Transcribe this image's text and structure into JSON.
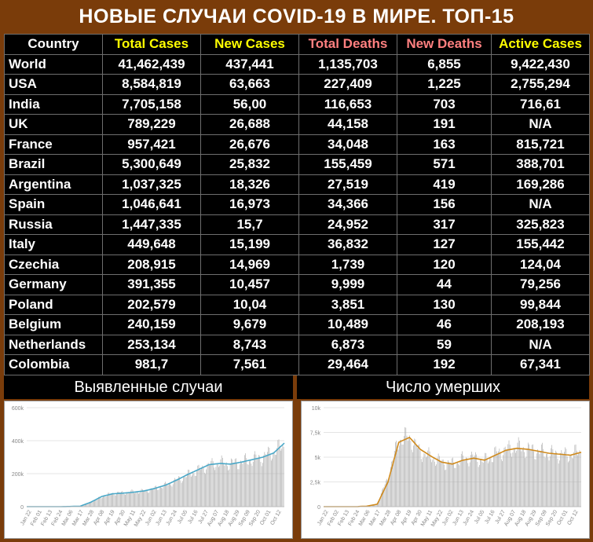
{
  "title": "НОВЫЕ СЛУЧАИ COVID-19 В МИРЕ. ТОП-15",
  "colors": {
    "background": "#7a3c0a",
    "header_yellow": "#ffff00",
    "header_red": "#ff8080",
    "header_white": "#ffffff",
    "cases_line": "#4aa8c8",
    "deaths_line": "#d08a1c",
    "bars": "#b0b0b0"
  },
  "table": {
    "headers": [
      "Country",
      "Total Cases",
      "New Cases",
      "Total Deaths",
      "New Deaths",
      "Active Cases"
    ],
    "rows": [
      [
        "World",
        "41,462,439",
        "437,441",
        "1,135,703",
        "6,855",
        "9,422,430"
      ],
      [
        "USA",
        "8,584,819",
        "63,663",
        "227,409",
        "1,225",
        "2,755,294"
      ],
      [
        "India",
        "7,705,158",
        "56,00",
        "116,653",
        "703",
        "716,61"
      ],
      [
        "UK",
        "789,229",
        "26,688",
        "44,158",
        "191",
        "N/A"
      ],
      [
        "France",
        "957,421",
        "26,676",
        "34,048",
        "163",
        "815,721"
      ],
      [
        "Brazil",
        "5,300,649",
        "25,832",
        "155,459",
        "571",
        "388,701"
      ],
      [
        "Argentina",
        "1,037,325",
        "18,326",
        "27,519",
        "419",
        "169,286"
      ],
      [
        "Spain",
        "1,046,641",
        "16,973",
        "34,366",
        "156",
        "N/A"
      ],
      [
        "Russia",
        "1,447,335",
        "15,7",
        "24,952",
        "317",
        "325,823"
      ],
      [
        "Italy",
        "449,648",
        "15,199",
        "36,832",
        "127",
        "155,442"
      ],
      [
        "Czechia",
        "208,915",
        "14,969",
        "1,739",
        "120",
        "124,04"
      ],
      [
        "Germany",
        "391,355",
        "10,457",
        "9,999",
        "44",
        "79,256"
      ],
      [
        "Poland",
        "202,579",
        "10,04",
        "3,851",
        "130",
        "99,844"
      ],
      [
        "Belgium",
        "240,159",
        "9,679",
        "10,489",
        "46",
        "208,193"
      ],
      [
        "Netherlands",
        "253,134",
        "8,743",
        "6,873",
        "59",
        "N/A"
      ],
      [
        "Colombia",
        "981,7",
        "7,561",
        "29,464",
        "192",
        "67,341"
      ]
    ]
  },
  "chart_data": [
    {
      "type": "bar",
      "title": "Выявленные случаи",
      "x_tick_labels": [
        "Jan 22",
        "Feb 01",
        "Feb 13",
        "Feb 24",
        "Mar 06",
        "Mar 17",
        "Mar 28",
        "Apr 08",
        "Apr 19",
        "Apr 30",
        "May 11",
        "May 22",
        "Jun 02",
        "Jun 13",
        "Jun 24",
        "Jul 05",
        "Jul 16",
        "Jul 27",
        "Aug 07",
        "Aug 18",
        "Aug 29",
        "Sep 09",
        "Sep 20",
        "Oct 01",
        "Oct 12"
      ],
      "y_ticks": [
        "0",
        "200k",
        "400k",
        "600k"
      ],
      "ylim": [
        0,
        600000
      ],
      "series": [
        {
          "kind": "daily",
          "values": [
            0,
            0,
            0,
            0,
            1000,
            3000,
            30000,
            60000,
            80000,
            85000,
            90000,
            95000,
            110000,
            130000,
            160000,
            190000,
            220000,
            250000,
            265000,
            260000,
            270000,
            285000,
            300000,
            330000,
            370000
          ]
        },
        {
          "kind": "7-day average",
          "values": [
            0,
            0,
            0,
            0,
            1000,
            3000,
            28000,
            62000,
            78000,
            82000,
            88000,
            96000,
            112000,
            132000,
            162000,
            195000,
            225000,
            255000,
            262000,
            258000,
            270000,
            285000,
            300000,
            325000,
            385000
          ]
        }
      ]
    },
    {
      "type": "bar",
      "title": "Число умерших",
      "x_tick_labels": [
        "Jan 22",
        "Feb 02",
        "Feb 13",
        "Feb 24",
        "Mar 06",
        "Mar 17",
        "Mar 28",
        "Apr 08",
        "Apr 19",
        "Apr 30",
        "May 11",
        "May 22",
        "Jun 02",
        "Jun 13",
        "Jun 24",
        "Jul 05",
        "Jul 16",
        "Jul 27",
        "Aug 07",
        "Aug 18",
        "Aug 29",
        "Sep 09",
        "Sep 20",
        "Oct 01",
        "Oct 12"
      ],
      "y_ticks": [
        "0",
        "2,5k",
        "5k",
        "7,5k",
        "10k"
      ],
      "ylim": [
        0,
        10000
      ],
      "series": [
        {
          "kind": "daily",
          "values": [
            0,
            0,
            0,
            0,
            50,
            300,
            3000,
            6800,
            7000,
            5500,
            5000,
            4500,
            4300,
            4800,
            5000,
            4600,
            5300,
            5700,
            6000,
            5800,
            5600,
            5400,
            5300,
            5200,
            5600
          ]
        },
        {
          "kind": "7-day average",
          "values": [
            0,
            0,
            0,
            0,
            50,
            250,
            2500,
            6500,
            7000,
            5800,
            5100,
            4500,
            4300,
            4700,
            4900,
            4700,
            5200,
            5700,
            5900,
            5800,
            5600,
            5400,
            5300,
            5200,
            5500
          ]
        }
      ]
    }
  ]
}
